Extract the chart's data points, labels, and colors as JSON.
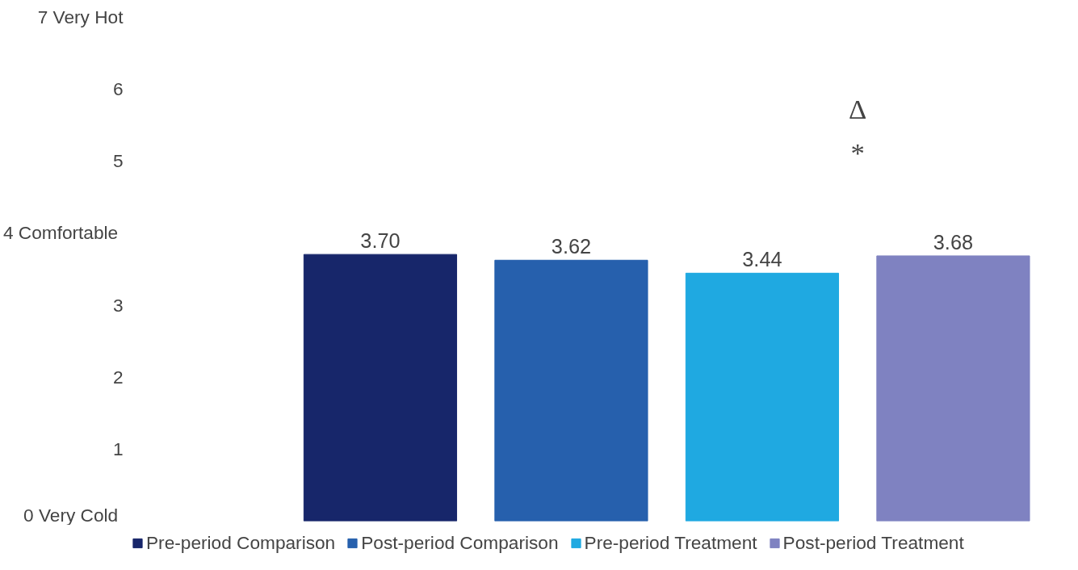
{
  "chart_data": {
    "type": "bar",
    "categories": [
      null,
      null,
      null,
      null
    ],
    "series": [
      {
        "name": "Pre-period Comparison",
        "color": "#17266a",
        "values": [
          3.7,
          null,
          null,
          null
        ],
        "value_labels": [
          "3.70",
          null,
          null,
          null
        ]
      },
      {
        "name": "Post-period Comparison",
        "color": "#2660ad",
        "values": [
          null,
          3.62,
          null,
          null
        ],
        "value_labels": [
          null,
          "3.62",
          null,
          null
        ]
      },
      {
        "name": "Pre-period Treatment",
        "color": "#1fa9e1",
        "values": [
          null,
          null,
          3.44,
          null
        ],
        "value_labels": [
          null,
          null,
          "3.44",
          null
        ]
      },
      {
        "name": "Post-period Treatment",
        "color": "#7f82c1",
        "values": [
          null,
          null,
          null,
          3.68
        ],
        "value_labels": [
          null,
          null,
          null,
          "3.68"
        ]
      }
    ],
    "ylim": [
      0,
      7
    ],
    "yticks": [
      {
        "value": 0,
        "label": "0  Very Cold"
      },
      1,
      2,
      3,
      {
        "value": 4,
        "label": "4  Comfortable"
      },
      5,
      6,
      {
        "value": 7,
        "label": "7 Very Hot"
      }
    ],
    "annotations": [
      "Δ",
      "*"
    ],
    "stacked": true,
    "grid": false,
    "legend": "bottom"
  }
}
